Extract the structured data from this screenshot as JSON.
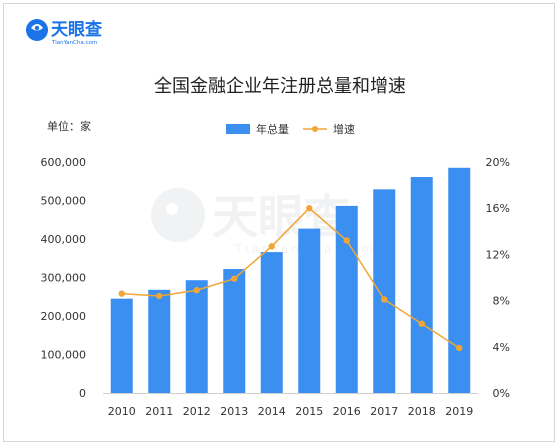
{
  "brand": {
    "name": "天眼查",
    "sub": "TianYanCha.com",
    "color": "#1a73e8"
  },
  "chart_data": {
    "type": "bar",
    "title": "全国金融企业年注册总量和增速",
    "unit_label": "单位：家",
    "categories": [
      "2010",
      "2011",
      "2012",
      "2013",
      "2014",
      "2015",
      "2016",
      "2017",
      "2018",
      "2019"
    ],
    "series": [
      {
        "name": "年总量",
        "type": "bar",
        "axis": "left",
        "color": "#3b8ff0",
        "values": [
          245000,
          268000,
          293000,
          322000,
          366000,
          427000,
          486000,
          529000,
          561000,
          585000
        ]
      },
      {
        "name": "增速",
        "type": "line",
        "axis": "right",
        "color": "#f0a637",
        "values": [
          8.6,
          8.4,
          8.9,
          9.9,
          12.7,
          16.0,
          13.2,
          8.1,
          6.0,
          3.9
        ]
      }
    ],
    "y_left": {
      "min": 0,
      "max": 600000,
      "ticks": [
        0,
        100000,
        200000,
        300000,
        400000,
        500000,
        600000
      ],
      "tick_labels": [
        "0",
        "100,000",
        "200,000",
        "300,000",
        "400,000",
        "500,000",
        "600,000"
      ]
    },
    "y_right": {
      "min": 0,
      "max": 20,
      "ticks": [
        0,
        4,
        8,
        12,
        16,
        20
      ],
      "tick_labels": [
        "0%",
        "4%",
        "8%",
        "12%",
        "16%",
        "20%"
      ]
    },
    "grid": false,
    "legend_position": "top-center"
  }
}
